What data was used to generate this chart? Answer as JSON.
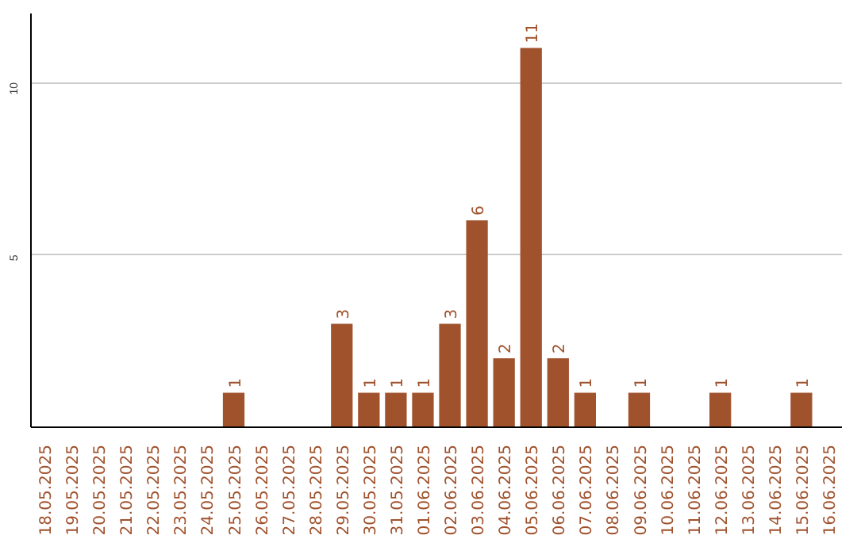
{
  "chart_data": {
    "type": "bar",
    "categories": [
      "18.05.2025",
      "19.05.2025",
      "20.05.2025",
      "21.05.2025",
      "22.05.2025",
      "23.05.2025",
      "24.05.2025",
      "25.05.2025",
      "26.05.2025",
      "27.05.2025",
      "28.05.2025",
      "29.05.2025",
      "30.05.2025",
      "31.05.2025",
      "01.06.2025",
      "02.06.2025",
      "03.06.2025",
      "04.06.2025",
      "05.06.2025",
      "06.06.2025",
      "07.06.2025",
      "08.06.2025",
      "09.06.2025",
      "10.06.2025",
      "11.06.2025",
      "12.06.2025",
      "13.06.2025",
      "14.06.2025",
      "15.06.2025",
      "16.06.2025"
    ],
    "values": [
      0,
      0,
      0,
      0,
      0,
      0,
      0,
      1,
      0,
      0,
      0,
      3,
      1,
      1,
      1,
      3,
      6,
      2,
      11,
      2,
      1,
      0,
      1,
      0,
      0,
      1,
      0,
      0,
      1,
      0
    ],
    "value_labels": [
      null,
      null,
      null,
      null,
      null,
      null,
      null,
      "1",
      null,
      null,
      null,
      "3",
      "1",
      "1",
      "1",
      "3",
      "6",
      "2",
      "11",
      "2",
      "1",
      null,
      "1",
      null,
      null,
      "1",
      null,
      null,
      "1",
      null
    ],
    "color": "#a0522d",
    "ylim": [
      0,
      12
    ],
    "yticks": [
      5,
      10
    ],
    "grid": "y"
  }
}
